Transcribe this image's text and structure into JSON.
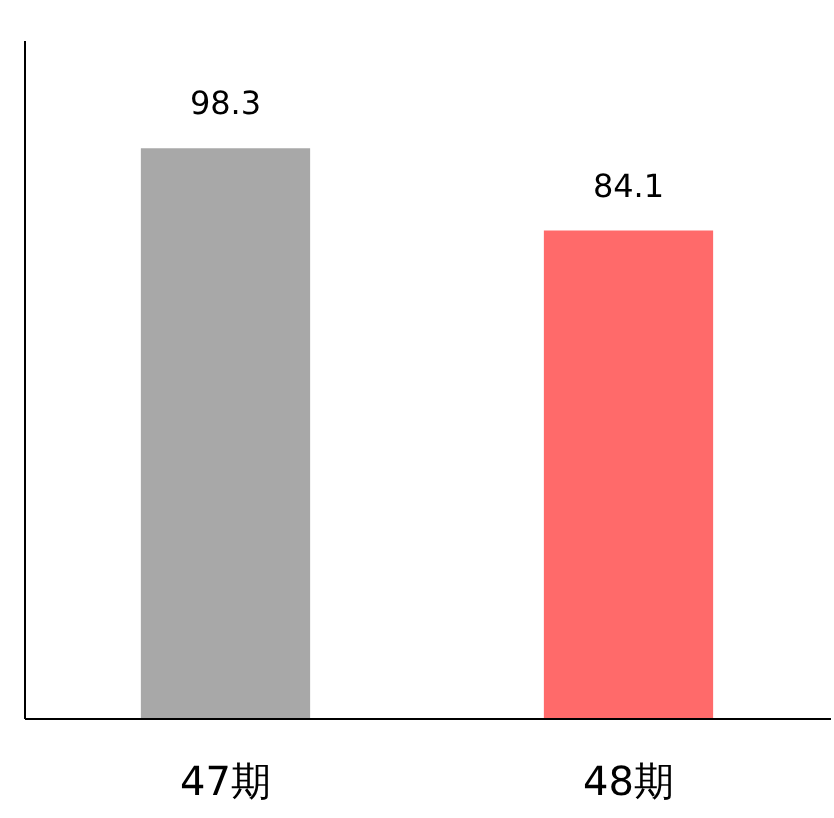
{
  "chart_data": {
    "type": "bar",
    "categories": [
      "47期",
      "48期"
    ],
    "values": [
      98.3,
      84.1
    ],
    "colors": [
      "#a8a8a8",
      "#ff6a6a"
    ],
    "data_labels": true
  }
}
